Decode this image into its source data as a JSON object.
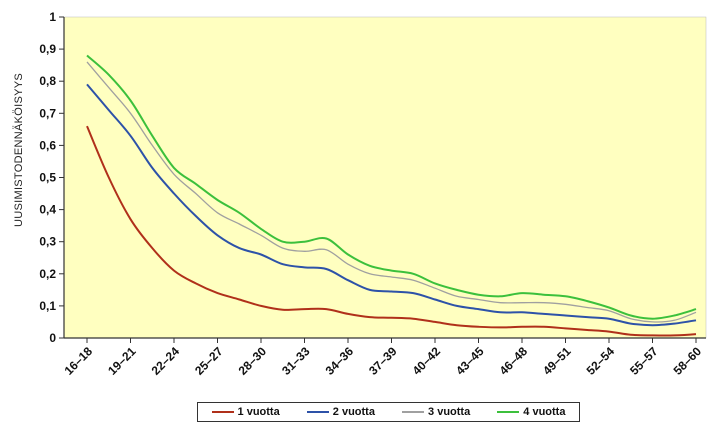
{
  "chart_data": {
    "type": "line",
    "ylabel": "UUSIMISTODENNÄKÖISYYS",
    "xlabel": "",
    "title": "",
    "ylim": [
      0,
      1
    ],
    "yticks": [
      "0",
      "0,1",
      "0,2",
      "0,3",
      "0,4",
      "0,5",
      "0,6",
      "0,7",
      "0,8",
      "0,9",
      "1"
    ],
    "categories": [
      "16–18",
      "19–21",
      "22–24",
      "25–27",
      "28–30",
      "31–33",
      "34–36",
      "37–39",
      "40–42",
      "43–45",
      "46–48",
      "49–51",
      "52–54",
      "55–57",
      "58–60"
    ],
    "grid": false,
    "background": "#ffffc0",
    "legend_position": "bottom",
    "series": [
      {
        "name": "1 vuotta",
        "color": "#b0301a",
        "x": [
          0,
          0.5,
          1,
          1.5,
          2,
          2.5,
          3,
          3.5,
          4,
          4.5,
          5,
          5.5,
          6,
          6.5,
          7,
          7.5,
          8,
          8.5,
          9,
          9.5,
          10,
          10.5,
          11,
          11.5,
          12,
          12.5,
          13,
          13.5,
          14
        ],
        "values": [
          0.66,
          0.5,
          0.37,
          0.28,
          0.21,
          0.17,
          0.14,
          0.12,
          0.1,
          0.088,
          0.09,
          0.09,
          0.075,
          0.065,
          0.063,
          0.06,
          0.05,
          0.04,
          0.035,
          0.033,
          0.035,
          0.035,
          0.03,
          0.025,
          0.02,
          0.01,
          0.008,
          0.008,
          0.012
        ]
      },
      {
        "name": "2 vuotta",
        "color": "#2d52a8",
        "x": [
          0,
          0.5,
          1,
          1.5,
          2,
          2.5,
          3,
          3.5,
          4,
          4.5,
          5,
          5.5,
          6,
          6.5,
          7,
          7.5,
          8,
          8.5,
          9,
          9.5,
          10,
          10.5,
          11,
          11.5,
          12,
          12.5,
          13,
          13.5,
          14
        ],
        "values": [
          0.79,
          0.71,
          0.63,
          0.53,
          0.45,
          0.38,
          0.32,
          0.28,
          0.26,
          0.23,
          0.22,
          0.215,
          0.18,
          0.15,
          0.145,
          0.14,
          0.12,
          0.1,
          0.09,
          0.08,
          0.08,
          0.075,
          0.07,
          0.065,
          0.06,
          0.045,
          0.04,
          0.045,
          0.055
        ]
      },
      {
        "name": "3 vuotta",
        "color": "#a0a0a0",
        "x": [
          0,
          0.5,
          1,
          1.5,
          2,
          2.5,
          3,
          3.5,
          4,
          4.5,
          5,
          5.5,
          6,
          6.5,
          7,
          7.5,
          8,
          8.5,
          9,
          9.5,
          10,
          10.5,
          11,
          11.5,
          12,
          12.5,
          13,
          13.5,
          14
        ],
        "values": [
          0.86,
          0.78,
          0.7,
          0.6,
          0.51,
          0.45,
          0.39,
          0.355,
          0.32,
          0.28,
          0.27,
          0.275,
          0.23,
          0.2,
          0.19,
          0.18,
          0.155,
          0.13,
          0.12,
          0.11,
          0.11,
          0.11,
          0.105,
          0.095,
          0.085,
          0.06,
          0.05,
          0.055,
          0.08
        ]
      },
      {
        "name": "4 vuotta",
        "color": "#3cc03c",
        "x": [
          0,
          0.5,
          1,
          1.5,
          2,
          2.5,
          3,
          3.5,
          4,
          4.5,
          5,
          5.5,
          6,
          6.5,
          7,
          7.5,
          8,
          8.5,
          9,
          9.5,
          10,
          10.5,
          11,
          11.5,
          12,
          12.5,
          13,
          13.5,
          14
        ],
        "values": [
          0.88,
          0.82,
          0.74,
          0.63,
          0.53,
          0.48,
          0.43,
          0.39,
          0.34,
          0.3,
          0.3,
          0.31,
          0.26,
          0.225,
          0.21,
          0.2,
          0.17,
          0.15,
          0.135,
          0.13,
          0.14,
          0.135,
          0.13,
          0.115,
          0.095,
          0.07,
          0.06,
          0.07,
          0.09
        ]
      }
    ]
  }
}
